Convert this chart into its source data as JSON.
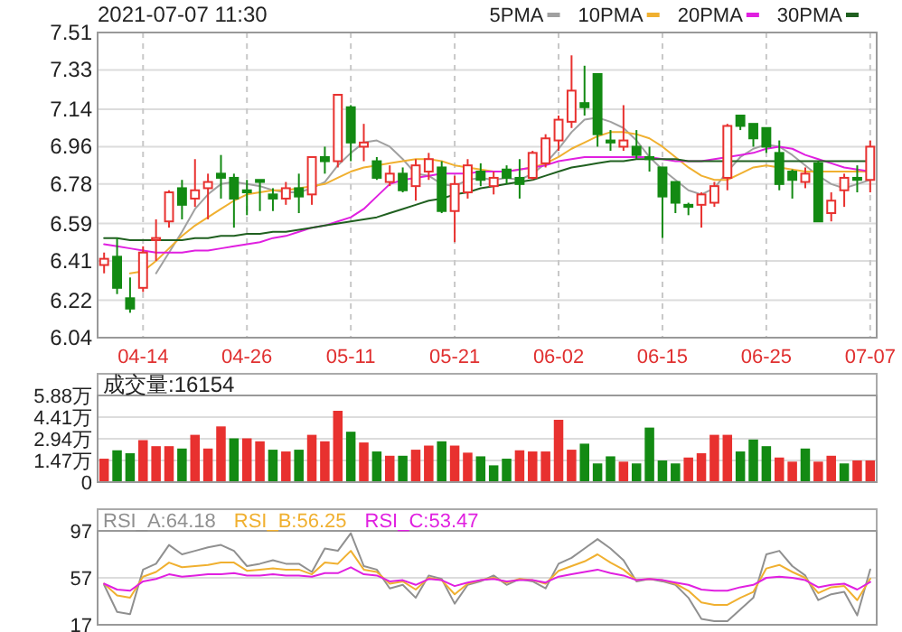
{
  "chart_data": [
    {
      "type": "candlestick",
      "title": "2021-07-07 11:30",
      "categories": [
        null,
        null,
        null,
        "04-14",
        null,
        null,
        null,
        null,
        null,
        null,
        null,
        "04-26",
        null,
        null,
        null,
        null,
        null,
        null,
        null,
        "05-11",
        null,
        null,
        null,
        null,
        null,
        null,
        null,
        "05-21",
        null,
        null,
        null,
        null,
        null,
        null,
        null,
        "06-02",
        null,
        null,
        null,
        null,
        null,
        null,
        null,
        "06-15",
        null,
        null,
        null,
        null,
        null,
        null,
        null,
        "06-25",
        null,
        null,
        null,
        null,
        null,
        null,
        null,
        "07-07"
      ],
      "ohlc": [
        [
          6.39,
          6.45,
          6.35,
          6.42
        ],
        [
          6.43,
          6.52,
          6.25,
          6.28
        ],
        [
          6.23,
          6.33,
          6.16,
          6.18
        ],
        [
          6.28,
          6.48,
          6.26,
          6.45
        ],
        [
          6.51,
          6.61,
          6.41,
          6.52
        ],
        [
          6.6,
          6.75,
          6.57,
          6.74
        ],
        [
          6.76,
          6.8,
          6.61,
          6.68
        ],
        [
          6.71,
          6.9,
          6.67,
          6.75
        ],
        [
          6.76,
          6.83,
          6.61,
          6.79
        ],
        [
          6.83,
          6.92,
          6.71,
          6.81
        ],
        [
          6.81,
          6.83,
          6.57,
          6.71
        ],
        [
          6.75,
          6.8,
          6.63,
          6.74
        ],
        [
          6.8,
          6.8,
          6.65,
          6.79
        ],
        [
          6.73,
          6.76,
          6.65,
          6.71
        ],
        [
          6.71,
          6.79,
          6.68,
          6.76
        ],
        [
          6.76,
          6.83,
          6.64,
          6.72
        ],
        [
          6.73,
          6.91,
          6.68,
          6.91
        ],
        [
          6.91,
          6.96,
          6.83,
          6.89
        ],
        [
          6.89,
          7.21,
          6.86,
          7.21
        ],
        [
          7.15,
          7.16,
          6.89,
          6.98
        ],
        [
          6.96,
          7.07,
          6.89,
          6.98
        ],
        [
          6.89,
          6.91,
          6.8,
          6.81
        ],
        [
          6.79,
          6.87,
          6.77,
          6.83
        ],
        [
          6.83,
          6.86,
          6.74,
          6.75
        ],
        [
          6.77,
          6.9,
          6.7,
          6.87
        ],
        [
          6.84,
          6.93,
          6.8,
          6.9
        ],
        [
          6.86,
          6.89,
          6.64,
          6.65
        ],
        [
          6.65,
          6.82,
          6.5,
          6.78
        ],
        [
          6.74,
          6.9,
          6.71,
          6.87
        ],
        [
          6.84,
          6.88,
          6.77,
          6.8
        ],
        [
          6.77,
          6.84,
          6.73,
          6.81
        ],
        [
          6.85,
          6.87,
          6.78,
          6.81
        ],
        [
          6.81,
          6.9,
          6.71,
          6.78
        ],
        [
          6.81,
          6.94,
          6.8,
          6.93
        ],
        [
          6.88,
          7.02,
          6.86,
          7.0
        ],
        [
          6.99,
          7.11,
          6.94,
          7.09
        ],
        [
          7.08,
          7.4,
          7.05,
          7.23
        ],
        [
          7.17,
          7.35,
          7.11,
          7.15
        ],
        [
          7.31,
          7.31,
          6.96,
          7.02
        ],
        [
          6.99,
          7.04,
          6.94,
          6.98
        ],
        [
          6.96,
          7.16,
          6.94,
          6.99
        ],
        [
          6.96,
          7.04,
          6.9,
          6.92
        ],
        [
          6.91,
          6.96,
          6.84,
          6.9
        ],
        [
          6.86,
          6.86,
          6.52,
          6.72
        ],
        [
          6.79,
          6.79,
          6.64,
          6.69
        ],
        [
          6.68,
          6.69,
          6.63,
          6.67
        ],
        [
          6.68,
          6.74,
          6.57,
          6.73
        ],
        [
          6.69,
          6.79,
          6.67,
          6.77
        ],
        [
          6.81,
          7.07,
          6.75,
          7.06
        ],
        [
          7.11,
          7.11,
          7.04,
          7.06
        ],
        [
          7.07,
          7.07,
          6.96,
          7.0
        ],
        [
          7.05,
          7.05,
          6.93,
          6.96
        ],
        [
          6.93,
          6.99,
          6.75,
          6.78
        ],
        [
          6.84,
          6.85,
          6.71,
          6.8
        ],
        [
          6.79,
          6.86,
          6.76,
          6.83
        ],
        [
          6.88,
          6.89,
          6.6,
          6.6
        ],
        [
          6.64,
          6.74,
          6.6,
          6.7
        ],
        [
          6.75,
          6.83,
          6.67,
          6.81
        ],
        [
          6.81,
          6.87,
          6.74,
          6.8
        ],
        [
          6.8,
          6.99,
          6.74,
          6.96
        ]
      ],
      "colors": [
        "#e8312f",
        "#138a13",
        "#138a13",
        "#e8312f",
        "#e8312f",
        "#e8312f",
        "#138a13",
        "#e8312f",
        "#e8312f",
        "#138a13",
        "#138a13",
        "#138a13",
        "#138a13",
        "#138a13",
        "#e8312f",
        "#138a13",
        "#e8312f",
        "#138a13",
        "#e8312f",
        "#138a13",
        "#e8312f",
        "#138a13",
        "#e8312f",
        "#138a13",
        "#e8312f",
        "#e8312f",
        "#138a13",
        "#e8312f",
        "#e8312f",
        "#138a13",
        "#e8312f",
        "#138a13",
        "#138a13",
        "#e8312f",
        "#e8312f",
        "#e8312f",
        "#e8312f",
        "#138a13",
        "#138a13",
        "#138a13",
        "#e8312f",
        "#138a13",
        "#138a13",
        "#138a13",
        "#138a13",
        "#138a13",
        "#e8312f",
        "#e8312f",
        "#e8312f",
        "#138a13",
        "#138a13",
        "#138a13",
        "#138a13",
        "#138a13",
        "#e8312f",
        "#138a13",
        "#e8312f",
        "#e8312f",
        "#138a13",
        "#e8312f"
      ],
      "series": [
        {
          "name": "5PMA",
          "type": "line",
          "color": "#a0a0a0",
          "values": [
            null,
            null,
            null,
            null,
            6.35,
            6.45,
            6.55,
            6.66,
            6.73,
            6.78,
            6.79,
            6.78,
            6.77,
            6.75,
            6.74,
            6.74,
            6.76,
            6.79,
            6.87,
            6.93,
            6.98,
            6.99,
            6.96,
            6.9,
            6.83,
            6.82,
            6.78,
            6.77,
            6.8,
            6.81,
            6.8,
            6.81,
            6.8,
            6.83,
            6.88,
            6.95,
            7.03,
            7.09,
            7.1,
            7.08,
            7.05,
            6.99,
            6.91,
            6.85,
            6.8,
            6.75,
            6.73,
            6.76,
            6.84,
            6.91,
            6.95,
            6.97,
            6.96,
            6.92,
            6.87,
            6.82,
            6.78,
            6.76,
            6.78,
            6.8
          ]
        },
        {
          "name": "10PMA",
          "type": "line",
          "color": "#f0b030",
          "values": [
            null,
            null,
            6.35,
            6.36,
            6.41,
            6.47,
            6.53,
            6.58,
            6.62,
            6.66,
            6.7,
            6.73,
            6.74,
            6.75,
            6.75,
            6.76,
            6.77,
            6.78,
            6.81,
            6.84,
            6.86,
            6.87,
            6.88,
            6.89,
            6.9,
            6.9,
            6.89,
            6.87,
            6.86,
            6.85,
            6.84,
            6.84,
            6.85,
            6.86,
            6.88,
            6.91,
            6.95,
            6.98,
            7.01,
            7.03,
            7.03,
            7.02,
            7.0,
            6.96,
            6.91,
            6.86,
            6.82,
            6.8,
            6.8,
            6.83,
            6.86,
            6.87,
            6.86,
            6.85,
            6.84,
            6.84,
            6.84,
            6.84,
            6.84,
            6.84
          ]
        },
        {
          "name": "20PMA",
          "type": "line",
          "color": "#e020e0",
          "values": [
            6.49,
            6.48,
            6.47,
            6.46,
            6.45,
            6.45,
            6.45,
            6.46,
            6.46,
            6.47,
            6.48,
            6.49,
            6.5,
            6.52,
            6.53,
            6.55,
            6.57,
            6.58,
            6.6,
            6.62,
            6.66,
            6.72,
            6.78,
            6.8,
            6.81,
            6.82,
            6.83,
            6.83,
            6.83,
            6.84,
            6.84,
            6.84,
            6.85,
            6.86,
            6.87,
            6.89,
            6.9,
            6.91,
            6.91,
            6.91,
            6.91,
            6.91,
            6.91,
            6.9,
            6.89,
            6.89,
            6.89,
            6.9,
            6.91,
            6.92,
            6.93,
            6.95,
            6.96,
            6.95,
            6.92,
            6.9,
            6.88,
            6.86,
            6.85,
            6.84
          ]
        },
        {
          "name": "30PMA",
          "type": "line",
          "color": "#206020",
          "values": [
            6.52,
            6.52,
            6.51,
            6.51,
            6.51,
            6.51,
            6.51,
            6.52,
            6.52,
            6.53,
            6.53,
            6.54,
            6.54,
            6.55,
            6.55,
            6.56,
            6.57,
            6.58,
            6.59,
            6.6,
            6.61,
            6.62,
            6.64,
            6.66,
            6.68,
            6.7,
            6.71,
            6.73,
            6.74,
            6.76,
            6.77,
            6.78,
            6.79,
            6.8,
            6.82,
            6.84,
            6.86,
            6.87,
            6.88,
            6.89,
            6.89,
            6.9,
            6.9,
            6.9,
            6.9,
            6.89,
            6.89,
            6.89,
            6.89,
            6.89,
            6.89,
            6.89,
            6.89,
            6.89,
            6.89,
            6.89,
            6.89,
            6.89,
            6.89,
            6.89
          ]
        }
      ],
      "ylim": [
        6.04,
        7.51
      ],
      "yticks": [
        6.04,
        6.22,
        6.41,
        6.59,
        6.78,
        6.96,
        7.14,
        7.33,
        7.51
      ],
      "grid": true,
      "legend": "top right"
    },
    {
      "type": "bar",
      "title": "成交量:16154",
      "categories": [
        null,
        null,
        null,
        null,
        null,
        null,
        null,
        null,
        null,
        null,
        null,
        null,
        null,
        null,
        null,
        null,
        null,
        null,
        null,
        null,
        null,
        null,
        null,
        null,
        null,
        null,
        null,
        null,
        null,
        null,
        null,
        null,
        null,
        null,
        null,
        null,
        null,
        null,
        null,
        null,
        null,
        null,
        null,
        null,
        null,
        null,
        null,
        null,
        null,
        null,
        null,
        null,
        null,
        null,
        null,
        null,
        null,
        null,
        null,
        null
      ],
      "values": [
        1.54,
        2.11,
        1.91,
        2.8,
        2.39,
        2.39,
        2.23,
        3.16,
        2.23,
        3.73,
        2.92,
        2.92,
        2.72,
        2.15,
        2.03,
        2.15,
        3.16,
        2.72,
        4.79,
        3.37,
        2.64,
        2.03,
        1.74,
        1.74,
        2.15,
        2.43,
        2.72,
        2.43,
        1.95,
        1.7,
        1.09,
        1.54,
        2.11,
        2.03,
        2.03,
        4.18,
        2.15,
        2.56,
        1.22,
        1.7,
        1.34,
        1.22,
        3.65,
        1.42,
        1.22,
        1.62,
        1.91,
        3.16,
        3.16,
        2.03,
        2.84,
        2.39,
        1.62,
        1.34,
        2.23,
        1.34,
        1.74,
        1.22,
        1.42,
        1.42
      ],
      "colors": [
        "#e8312f",
        "#138a13",
        "#138a13",
        "#e8312f",
        "#e8312f",
        "#e8312f",
        "#138a13",
        "#e8312f",
        "#e8312f",
        "#e8312f",
        "#138a13",
        "#e8312f",
        "#e8312f",
        "#138a13",
        "#e8312f",
        "#138a13",
        "#e8312f",
        "#e8312f",
        "#e8312f",
        "#138a13",
        "#e8312f",
        "#138a13",
        "#e8312f",
        "#138a13",
        "#e8312f",
        "#e8312f",
        "#138a13",
        "#e8312f",
        "#e8312f",
        "#138a13",
        "#138a13",
        "#138a13",
        "#e8312f",
        "#e8312f",
        "#e8312f",
        "#e8312f",
        "#e8312f",
        "#138a13",
        "#138a13",
        "#138a13",
        "#e8312f",
        "#138a13",
        "#138a13",
        "#138a13",
        "#138a13",
        "#e8312f",
        "#e8312f",
        "#e8312f",
        "#e8312f",
        "#138a13",
        "#138a13",
        "#138a13",
        "#e8312f",
        "#e8312f",
        "#138a13",
        "#e8312f",
        "#e8312f",
        "#138a13",
        "#e8312f",
        "#e8312f"
      ],
      "ylim": [
        0,
        5.88
      ],
      "yticks": [
        0,
        {
          "value": 1.47,
          "label": "1.47万"
        },
        {
          "value": 2.94,
          "label": "2.94万"
        },
        {
          "value": 4.41,
          "label": "4.41万"
        },
        {
          "value": 5.88,
          "label": "5.88万"
        }
      ],
      "grid": true,
      "tick_labels": "y"
    },
    {
      "type": "line",
      "categories": [
        null,
        null,
        null,
        null,
        null,
        null,
        null,
        null,
        null,
        null,
        null,
        null,
        null,
        null,
        null,
        null,
        null,
        null,
        null,
        null,
        null,
        null,
        null,
        null,
        null,
        null,
        null,
        null,
        null,
        null,
        null,
        null,
        null,
        null,
        null,
        null,
        null,
        null,
        null,
        null,
        null,
        null,
        null,
        null,
        null,
        null,
        null,
        null,
        null,
        null,
        null,
        null,
        null,
        null,
        null,
        null,
        null,
        null,
        null,
        null
      ],
      "series": [
        {
          "name": "RSI_A:64.18",
          "color": "#909090",
          "values": [
            51,
            28,
            26,
            64,
            69,
            85,
            77,
            80,
            83,
            85,
            80,
            67,
            69,
            72,
            69,
            69,
            62,
            82,
            80,
            95,
            67,
            64,
            48,
            51,
            40,
            59,
            56,
            35,
            51,
            54,
            59,
            51,
            56,
            54,
            48,
            69,
            74,
            82,
            90,
            82,
            72,
            54,
            56,
            54,
            51,
            40,
            22,
            20,
            20,
            30,
            40,
            77,
            80,
            67,
            59,
            38,
            43,
            45,
            25,
            64.18
          ]
        },
        {
          "name": "RSI_B:56.25",
          "color": "#f0b030",
          "values": [
            52,
            42,
            40,
            58,
            62,
            70,
            66,
            67,
            68,
            70,
            70,
            63,
            64,
            65,
            64,
            64,
            60,
            70,
            69,
            80,
            64,
            62,
            52,
            54,
            47,
            57,
            55,
            43,
            52,
            55,
            57,
            53,
            56,
            55,
            52,
            63,
            67,
            71,
            77,
            70,
            64,
            55,
            56,
            55,
            52,
            46,
            36,
            34,
            34,
            40,
            45,
            65,
            68,
            62,
            57,
            44,
            49,
            50,
            38,
            56.25
          ]
        },
        {
          "name": "RSI_C:53.47",
          "color": "#e020e0",
          "values": [
            52,
            47,
            46,
            54,
            56,
            60,
            58,
            59,
            60,
            60,
            61,
            59,
            59,
            60,
            59,
            59,
            58,
            61,
            61,
            66,
            60,
            59,
            54,
            55,
            51,
            56,
            55,
            50,
            53,
            55,
            56,
            54,
            55,
            55,
            53,
            58,
            60,
            62,
            64,
            61,
            59,
            55,
            56,
            55,
            53,
            51,
            47,
            46,
            46,
            49,
            51,
            57,
            58,
            57,
            55,
            49,
            51,
            52,
            47,
            53.47
          ]
        }
      ],
      "ylim": [
        17,
        97
      ],
      "yticks": [
        17,
        57,
        97
      ],
      "grid": true,
      "legend": "top left",
      "tick_labels": "y"
    }
  ]
}
